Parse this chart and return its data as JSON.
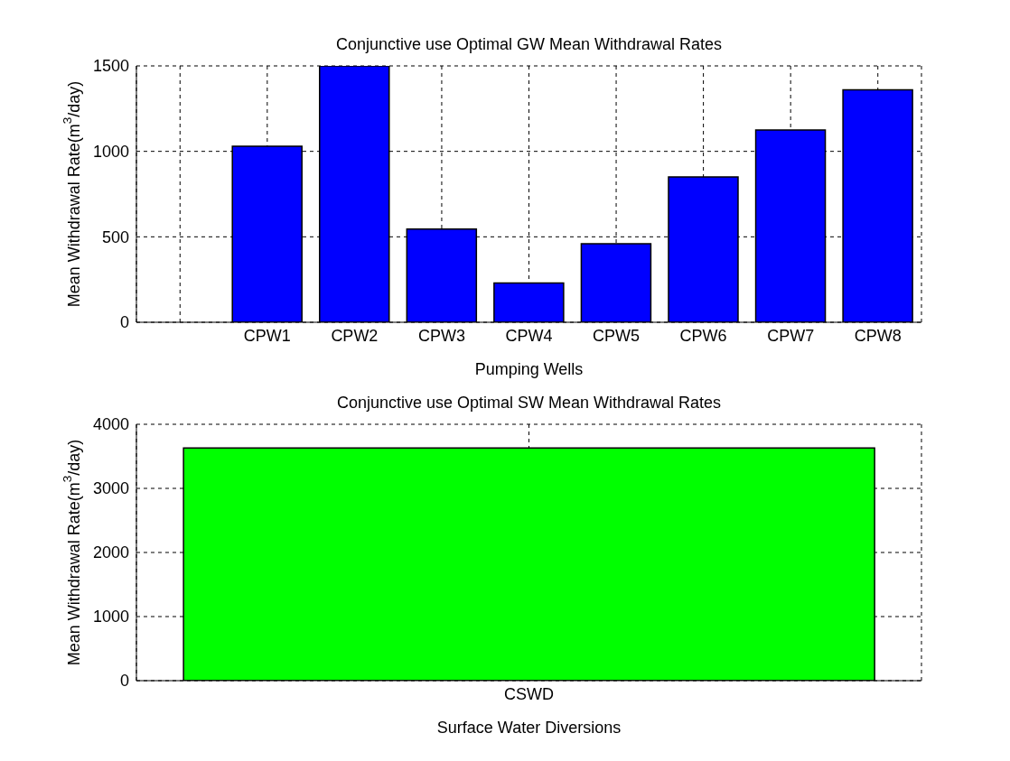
{
  "chart_data": [
    {
      "type": "bar",
      "title": "Conjunctive use Optimal GW Mean Withdrawal Rates",
      "xlabel": "Pumping Wells",
      "ylabel": "Mean Withdrawal Rate(m$^{3}$/day)",
      "categories": [
        null,
        "CPW1",
        "CPW2",
        "CPW3",
        "CPW4",
        "CPW5",
        "CPW6",
        "CPW7",
        "CPW8"
      ],
      "values": [
        null,
        1030,
        1500,
        545,
        230,
        460,
        850,
        1125,
        1360
      ],
      "color": "#0000ff",
      "ylim": [
        0,
        1500
      ],
      "yticks": [
        0,
        500,
        1000,
        1500
      ],
      "grid": true
    },
    {
      "type": "bar",
      "title": "Conjunctive use Optimal SW Mean Withdrawal Rates",
      "xlabel": "Surface Water Diversions",
      "ylabel": "Mean Withdrawal Rate(m$^{3}$/day)",
      "categories": [
        "CSWD"
      ],
      "values": [
        3630
      ],
      "color": "#00ff00",
      "ylim": [
        0,
        4000
      ],
      "yticks": [
        0,
        1000,
        2000,
        3000,
        4000
      ],
      "grid": true
    }
  ]
}
